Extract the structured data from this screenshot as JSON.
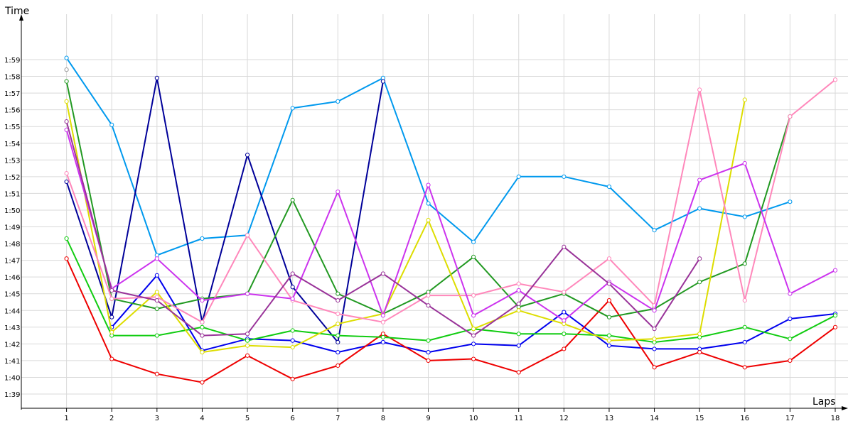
{
  "chart_data": {
    "type": "line",
    "xlabel": "Laps",
    "ylabel": "Time",
    "grid": true,
    "legend": "none",
    "xlim": [
      0,
      18
    ],
    "ylim": [
      98,
      240
    ],
    "x_ticks": [
      1,
      2,
      3,
      4,
      5,
      6,
      7,
      8,
      9,
      10,
      11,
      12,
      13,
      14,
      15,
      16,
      17,
      18
    ],
    "y_ticks": [
      {
        "v": 99,
        "label": "1:39"
      },
      {
        "v": 100,
        "label": "1:40"
      },
      {
        "v": 101,
        "label": "1:41"
      },
      {
        "v": 102,
        "label": "1:42"
      },
      {
        "v": 103,
        "label": "1:43"
      },
      {
        "v": 104,
        "label": "1:44"
      },
      {
        "v": 105,
        "label": "1:45"
      },
      {
        "v": 106,
        "label": "1:46"
      },
      {
        "v": 107,
        "label": "1:47"
      },
      {
        "v": 108,
        "label": "1:48"
      },
      {
        "v": 109,
        "label": "1:49"
      },
      {
        "v": 110,
        "label": "1:50"
      },
      {
        "v": 111,
        "label": "1:51"
      },
      {
        "v": 112,
        "label": "1:52"
      },
      {
        "v": 113,
        "label": "1:53"
      },
      {
        "v": 114,
        "label": "1:54"
      },
      {
        "v": 115,
        "label": "1:55"
      },
      {
        "v": 116,
        "label": "1:56"
      },
      {
        "v": 117,
        "label": "1:57"
      },
      {
        "v": 118,
        "label": "1:58"
      },
      {
        "v": 119,
        "label": "1:59"
      }
    ],
    "series": [
      {
        "color": "#0099ee",
        "x": [
          1,
          2,
          3,
          4,
          5,
          6,
          7,
          8,
          9,
          10,
          11,
          12,
          13,
          14,
          15,
          16,
          17
        ],
        "values": [
          119.1,
          115.1,
          107.3,
          108.3,
          108.5,
          116.1,
          116.5,
          117.9,
          110.4,
          108.1,
          112.0,
          112.0,
          111.4,
          108.8,
          110.1,
          109.6,
          110.5
        ]
      },
      {
        "color": "#000099",
        "x": [
          1,
          2,
          3,
          4,
          5,
          6,
          7,
          8
        ],
        "values": [
          111.7,
          103.6,
          117.9,
          103.3,
          113.3,
          105.4,
          102.1,
          117.7
        ]
      },
      {
        "color": "#0000ee",
        "x": [
          2,
          3,
          4,
          5,
          6,
          7,
          8,
          9,
          10,
          11,
          12,
          13,
          14,
          15,
          16,
          17,
          18
        ],
        "values": [
          103.0,
          106.1,
          101.6,
          102.3,
          102.2,
          101.5,
          102.1,
          101.5,
          102.0,
          101.9,
          103.9,
          101.9,
          101.7,
          101.7,
          102.1,
          103.5,
          103.8
        ]
      },
      {
        "color": "#ee0000",
        "x": [
          1,
          2,
          3,
          4,
          5,
          6,
          7,
          8,
          9,
          10,
          11,
          12,
          13,
          14,
          15,
          16,
          17,
          18
        ],
        "values": [
          107.1,
          101.1,
          100.2,
          99.7,
          101.3,
          99.9,
          100.7,
          102.6,
          101.0,
          101.1,
          100.3,
          101.7,
          104.6,
          100.6,
          101.5,
          100.6,
          101.0,
          103.0
        ]
      },
      {
        "color": "#11cc11",
        "x": [
          1,
          2,
          3,
          4,
          5,
          6,
          7,
          8,
          9,
          10,
          11,
          12,
          13,
          14,
          15,
          16,
          17,
          18
        ],
        "values": [
          108.3,
          102.5,
          102.5,
          103.0,
          102.2,
          102.8,
          102.5,
          102.4,
          102.2,
          102.9,
          102.6,
          102.6,
          102.5,
          102.1,
          102.4,
          103.0,
          102.3,
          103.7
        ]
      },
      {
        "color": "#229922",
        "x": [
          1,
          2,
          3,
          4,
          5,
          6,
          7,
          8,
          9,
          10,
          11,
          12,
          13,
          14,
          15,
          16,
          17
        ],
        "values": [
          117.7,
          104.7,
          104.1,
          104.7,
          105.0,
          110.6,
          105.0,
          103.8,
          105.1,
          107.2,
          104.2,
          105.0,
          103.6,
          104.1,
          105.7,
          106.8,
          115.6
        ]
      },
      {
        "color": "#dddd00",
        "x": [
          1,
          2,
          3,
          4,
          5,
          6,
          7,
          8,
          9,
          10,
          11,
          12,
          13,
          14,
          15,
          16
        ],
        "values": [
          116.5,
          102.7,
          105.1,
          101.5,
          101.9,
          101.8,
          103.2,
          103.8,
          109.4,
          102.9,
          104.0,
          103.2,
          102.2,
          102.3,
          102.6,
          116.6
        ]
      },
      {
        "color": "#ff88bb",
        "x": [
          1,
          2,
          3,
          4,
          5,
          6,
          7,
          8,
          9,
          10,
          11,
          12,
          13,
          14,
          15,
          16,
          17,
          18
        ],
        "values": [
          112.2,
          104.7,
          104.8,
          103.3,
          108.5,
          104.6,
          103.8,
          103.3,
          104.9,
          104.9,
          105.6,
          105.1,
          107.1,
          104.3,
          117.2,
          104.6,
          115.6,
          117.8
        ]
      },
      {
        "color": "#cc33ee",
        "x": [
          1,
          2,
          3,
          4,
          5,
          6,
          7,
          8,
          9,
          10,
          11,
          12,
          13,
          14,
          15,
          16,
          17,
          18
        ],
        "values": [
          114.8,
          105.3,
          107.1,
          104.6,
          105.0,
          104.7,
          111.1,
          103.7,
          111.5,
          103.7,
          105.2,
          103.4,
          105.7,
          104.0,
          111.8,
          112.8,
          105.0,
          106.4
        ]
      },
      {
        "color": "#993399",
        "x": [
          1,
          2,
          3,
          4,
          5,
          6,
          7,
          8,
          9,
          10,
          11,
          12,
          13,
          14,
          15
        ],
        "values": [
          115.3,
          105.2,
          104.6,
          102.5,
          102.6,
          106.2,
          104.6,
          106.2,
          104.3,
          102.5,
          104.4,
          107.8,
          105.6,
          102.9,
          107.1
        ]
      },
      {
        "color": "#999999",
        "x": [
          1
        ],
        "values": [
          118.4
        ]
      }
    ]
  }
}
